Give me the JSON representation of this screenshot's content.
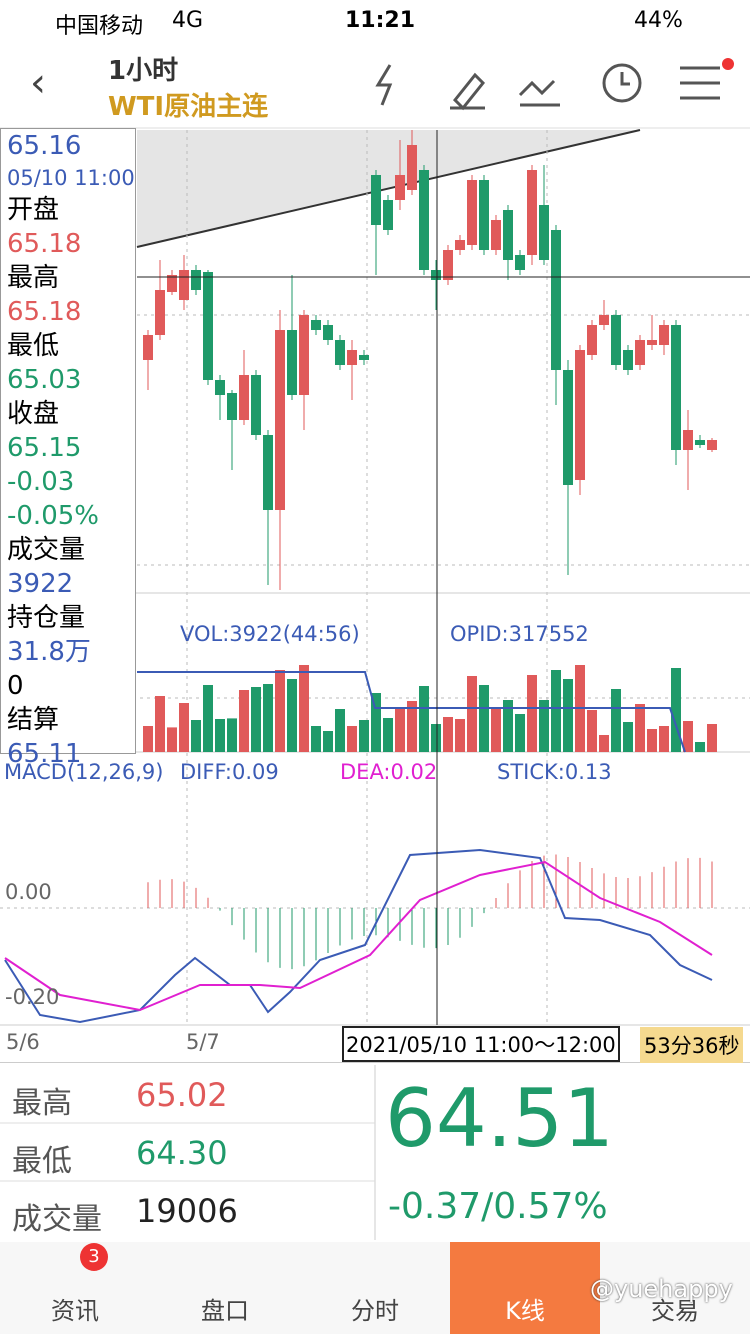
{
  "status_bar": {
    "carrier": "中国移动",
    "network": "4G",
    "time": "11:21",
    "battery": "44%"
  },
  "header": {
    "title": "1小时",
    "subtitle": "WTI原油主连"
  },
  "info_panel": {
    "price": "65.16",
    "time": "05/10 11:00",
    "open_label": "开盘",
    "open": "65.18",
    "high_label": "最高",
    "high": "65.18",
    "low_label": "最低",
    "low": "65.03",
    "close_label": "收盘",
    "close": "65.15",
    "change": "-0.03",
    "change_pct": "-0.05%",
    "volume_label": "成交量",
    "volume": "3922",
    "oi_label": "持仓量",
    "oi": "31.8万",
    "oi_change": "0",
    "settle_label": "结算",
    "settle": "65.11"
  },
  "volume_panel": {
    "vol": "VOL:3922(44:56)",
    "opid": "OPID:317552"
  },
  "macd_panel": {
    "title": "MACD(12,26,9)",
    "diff": "DIFF:0.09",
    "dea": "DEA:0.02",
    "stick": "STICK:0.13",
    "zero": "0.00",
    "low": "-0.20"
  },
  "x_axis": {
    "d1": "5/6",
    "d2": "5/7",
    "cursor": "2021/05/10 11:00～12:00",
    "countdown": "53分36秒"
  },
  "quote": {
    "high_label": "最高",
    "high": "65.02",
    "low_label": "最低",
    "low": "64.30",
    "volume_label": "成交量",
    "volume": "19006",
    "last": "64.51",
    "change": "-0.37/0.57%"
  },
  "tabs": {
    "news": "资讯",
    "news_badge": "3",
    "book": "盘口",
    "intraday": "分时",
    "kline": "K线",
    "trade": "交易"
  },
  "watermark": "@yuehappy"
}
